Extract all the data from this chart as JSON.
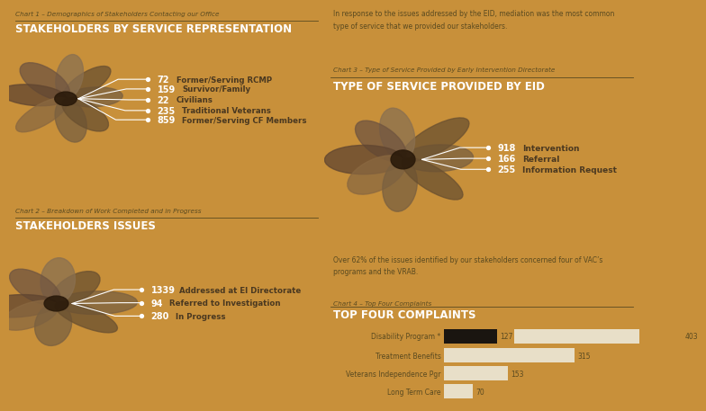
{
  "bg_color": "#c8903a",
  "text_dark": "#5a4a20",
  "text_white": "#ffffff",
  "text_label": "#5a4520",
  "chart1": {
    "subtitle": "Chart 1 – Demographics of Stakeholders Contacting our Office",
    "title": "STAKEHOLDERS BY SERVICE REPRESENTATION",
    "labels": [
      "Former/Serving RCMP",
      "Survivor/Family",
      "Civilians",
      "Traditional Veterans",
      "Former/Serving CF Members"
    ],
    "values": [
      72,
      159,
      22,
      235,
      859
    ]
  },
  "chart2": {
    "subtitle": "Chart 2 – Breakdown of Work Completed and in Progress",
    "title": "STAKEHOLDERS ISSUES",
    "labels": [
      "Addressed at EI Directorate",
      "Referred to Investigation",
      "In Progress"
    ],
    "values": [
      1339,
      94,
      280
    ]
  },
  "chart3": {
    "subtitle": "Chart 3 – Type of Service Provided by Early Intervention Directorate",
    "title": "TYPE OF SERVICE PROVIDED BY EID",
    "body_text": "In response to the issues addressed by the EID, mediation was the most common\ntype of service that we provided our stakeholders.",
    "labels": [
      "Intervention",
      "Referral",
      "Information Request"
    ],
    "values": [
      918,
      166,
      255
    ]
  },
  "chart4": {
    "subtitle": "Chart 4 – Top Four Complaints",
    "title": "TOP FOUR COMPLAINTS",
    "body_text": "Over 62% of the issues identified by our stakeholders concerned four of VAC’s\nprograms and the VRAB.",
    "categories": [
      "Disability Program *",
      "Treatment Benefits",
      "Veterans Independence Pgr",
      "Long Term Care"
    ],
    "dark_values": [
      127,
      0,
      0,
      0
    ],
    "light_values": [
      403,
      315,
      153,
      70
    ],
    "bar_dark_color": "#1a1510",
    "bar_light_color": "#e8dfc8"
  }
}
